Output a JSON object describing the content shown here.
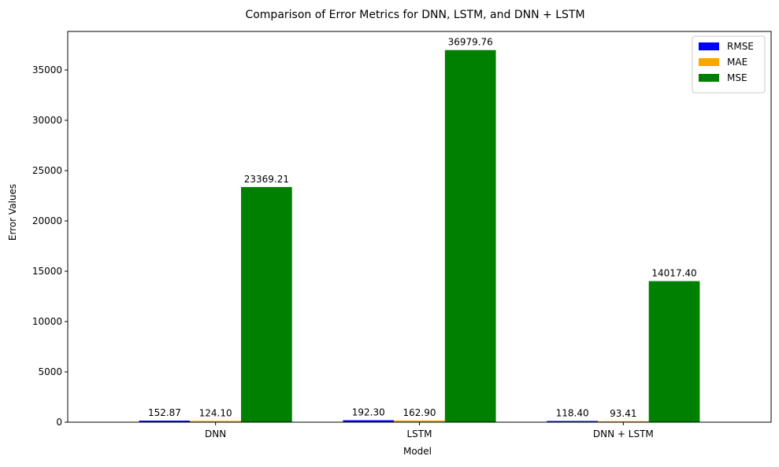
{
  "chart_data": {
    "type": "bar",
    "title": "Comparison of Error Metrics for DNN, LSTM, and DNN + LSTM",
    "xlabel": "Model",
    "ylabel": "Error Values",
    "categories": [
      "DNN",
      "LSTM",
      "DNN + LSTM"
    ],
    "series": [
      {
        "name": "RMSE",
        "color": "#0000ff",
        "values": [
          152.87,
          192.3,
          118.4
        ],
        "labels": [
          "152.87",
          "192.30",
          "118.40"
        ]
      },
      {
        "name": "MAE",
        "color": "#ffa500",
        "values": [
          124.1,
          162.9,
          93.41
        ],
        "labels": [
          "124.10",
          "162.90",
          "93.41"
        ]
      },
      {
        "name": "MSE",
        "color": "#008000",
        "values": [
          23369.21,
          36979.76,
          14017.4
        ],
        "labels": [
          "23369.21",
          "36979.76",
          "14017.40"
        ]
      }
    ],
    "ylim": [
      0,
      38829
    ],
    "yticks": [
      0,
      5000,
      10000,
      15000,
      20000,
      25000,
      30000,
      35000
    ],
    "ytick_labels": [
      "0",
      "5000",
      "10000",
      "15000",
      "20000",
      "25000",
      "30000",
      "35000"
    ],
    "grid": false,
    "legend_position": "top-right"
  }
}
